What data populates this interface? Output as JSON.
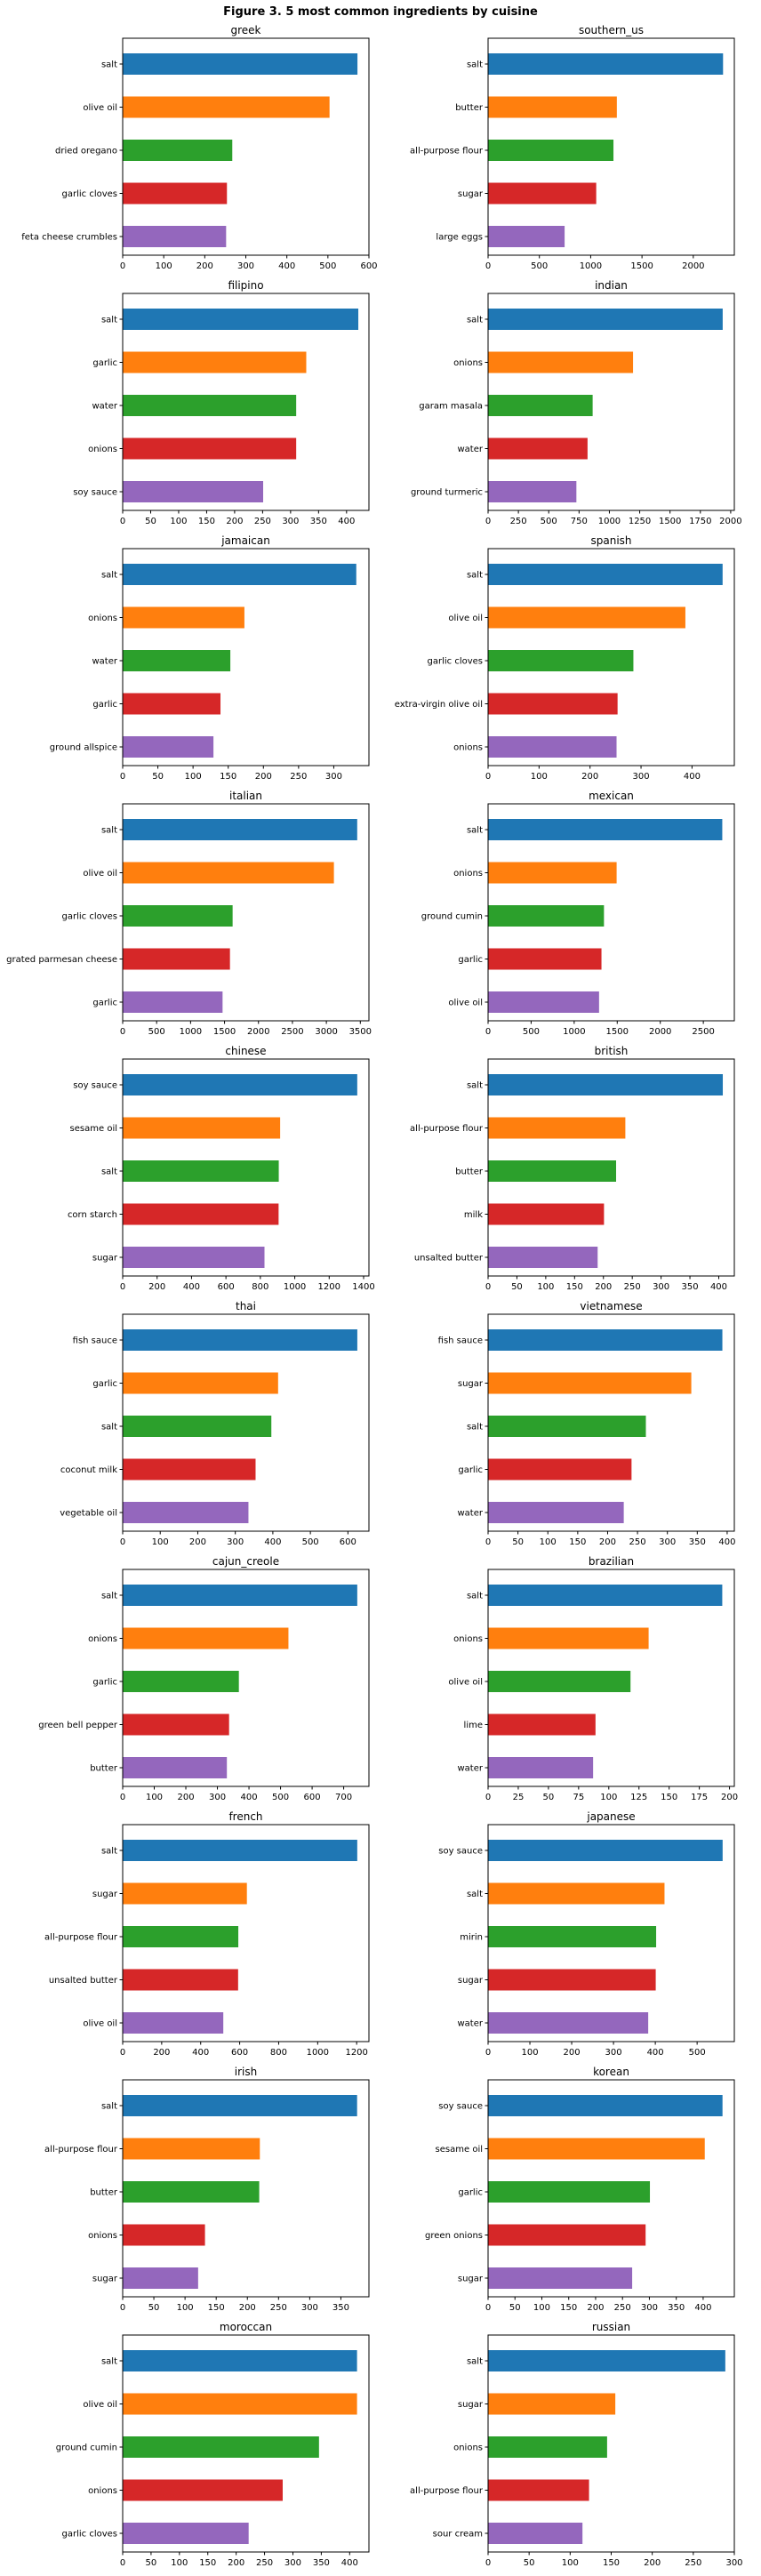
{
  "figure_title": "Figure 3. 5 most common ingredients by cuisine",
  "colors": [
    "#1f77b4",
    "#ff7f0e",
    "#2ca02c",
    "#d62728",
    "#9467bd"
  ],
  "chart_data": [
    {
      "type": "bar",
      "orientation": "horizontal",
      "title": "greek",
      "categories": [
        "salt",
        "olive oil",
        "dried oregano",
        "garlic cloves",
        "feta cheese crumbles"
      ],
      "values": [
        572,
        504,
        267,
        254,
        252
      ],
      "xlim": [
        0,
        600
      ],
      "xticks": [
        0,
        100,
        200,
        300,
        400,
        500,
        600
      ]
    },
    {
      "type": "bar",
      "orientation": "horizontal",
      "title": "southern_us",
      "categories": [
        "salt",
        "butter",
        "all-purpose flour",
        "sugar",
        "large eggs"
      ],
      "values": [
        2290,
        1255,
        1222,
        1054,
        746
      ],
      "xlim": [
        0,
        2400
      ],
      "xticks": [
        0,
        500,
        1000,
        1500,
        2000
      ]
    },
    {
      "type": "bar",
      "orientation": "horizontal",
      "title": "filipino",
      "categories": [
        "salt",
        "garlic",
        "water",
        "onions",
        "soy sauce"
      ],
      "values": [
        421,
        328,
        310,
        310,
        251
      ],
      "xlim": [
        0,
        440
      ],
      "xticks": [
        0,
        50,
        100,
        150,
        200,
        250,
        300,
        350,
        400
      ]
    },
    {
      "type": "bar",
      "orientation": "horizontal",
      "title": "indian",
      "categories": [
        "salt",
        "onions",
        "garam masala",
        "water",
        "ground turmeric"
      ],
      "values": [
        1934,
        1195,
        862,
        820,
        728
      ],
      "xlim": [
        0,
        2030
      ],
      "xticks": [
        0,
        250,
        500,
        750,
        1000,
        1250,
        1500,
        1750,
        2000
      ]
    },
    {
      "type": "bar",
      "orientation": "horizontal",
      "title": "jamaican",
      "categories": [
        "salt",
        "onions",
        "water",
        "garlic",
        "ground allspice"
      ],
      "values": [
        332,
        173,
        153,
        139,
        129
      ],
      "xlim": [
        0,
        350
      ],
      "xticks": [
        0,
        50,
        100,
        150,
        200,
        250,
        300
      ]
    },
    {
      "type": "bar",
      "orientation": "horizontal",
      "title": "spanish",
      "categories": [
        "salt",
        "olive oil",
        "garlic cloves",
        "extra-virgin olive oil",
        "onions"
      ],
      "values": [
        460,
        387,
        285,
        254,
        252
      ],
      "xlim": [
        0,
        483
      ],
      "xticks": [
        0,
        100,
        200,
        300,
        400
      ]
    },
    {
      "type": "bar",
      "orientation": "horizontal",
      "title": "italian",
      "categories": [
        "salt",
        "olive oil",
        "garlic cloves",
        "grated parmesan cheese",
        "garlic"
      ],
      "values": [
        3454,
        3111,
        1619,
        1580,
        1471
      ],
      "xlim": [
        0,
        3627
      ],
      "xticks": [
        0,
        500,
        1000,
        1500,
        2000,
        2500,
        3000,
        3500
      ]
    },
    {
      "type": "bar",
      "orientation": "horizontal",
      "title": "mexican",
      "categories": [
        "salt",
        "onions",
        "ground cumin",
        "garlic",
        "olive oil"
      ],
      "values": [
        2720,
        1493,
        1346,
        1317,
        1289
      ],
      "xlim": [
        0,
        2860
      ],
      "xticks": [
        0,
        500,
        1000,
        1500,
        2000,
        2500
      ]
    },
    {
      "type": "bar",
      "orientation": "horizontal",
      "title": "chinese",
      "categories": [
        "soy sauce",
        "sesame oil",
        "salt",
        "corn starch",
        "sugar"
      ],
      "values": [
        1363,
        915,
        907,
        906,
        824
      ],
      "xlim": [
        0,
        1431
      ],
      "xticks": [
        0,
        200,
        400,
        600,
        800,
        1000,
        1200,
        1400
      ]
    },
    {
      "type": "bar",
      "orientation": "horizontal",
      "title": "british",
      "categories": [
        "salt",
        "all-purpose flour",
        "butter",
        "milk",
        "unsalted butter"
      ],
      "values": [
        407,
        238,
        222,
        201,
        190
      ],
      "xlim": [
        0,
        427
      ],
      "xticks": [
        0,
        50,
        100,
        150,
        200,
        250,
        300,
        350,
        400
      ]
    },
    {
      "type": "bar",
      "orientation": "horizontal",
      "title": "thai",
      "categories": [
        "fish sauce",
        "garlic",
        "salt",
        "coconut milk",
        "vegetable oil"
      ],
      "values": [
        625,
        414,
        396,
        354,
        335
      ],
      "xlim": [
        0,
        656
      ],
      "xticks": [
        0,
        100,
        200,
        300,
        400,
        500,
        600
      ]
    },
    {
      "type": "bar",
      "orientation": "horizontal",
      "title": "vietnamese",
      "categories": [
        "fish sauce",
        "sugar",
        "salt",
        "garlic",
        "water"
      ],
      "values": [
        392,
        340,
        264,
        240,
        227
      ],
      "xlim": [
        0,
        412
      ],
      "xticks": [
        0,
        50,
        100,
        150,
        200,
        250,
        300,
        350,
        400
      ]
    },
    {
      "type": "bar",
      "orientation": "horizontal",
      "title": "cajun_creole",
      "categories": [
        "salt",
        "onions",
        "garlic",
        "green bell pepper",
        "butter"
      ],
      "values": [
        743,
        525,
        368,
        337,
        330
      ],
      "xlim": [
        0,
        780
      ],
      "xticks": [
        0,
        100,
        200,
        300,
        400,
        500,
        600,
        700
      ]
    },
    {
      "type": "bar",
      "orientation": "horizontal",
      "title": "brazilian",
      "categories": [
        "salt",
        "onions",
        "olive oil",
        "lime",
        "water"
      ],
      "values": [
        194,
        133,
        118,
        89,
        87
      ],
      "xlim": [
        0,
        204
      ],
      "xticks": [
        0,
        25,
        50,
        75,
        100,
        125,
        150,
        175,
        200
      ]
    },
    {
      "type": "bar",
      "orientation": "horizontal",
      "title": "french",
      "categories": [
        "salt",
        "sugar",
        "all-purpose flour",
        "unsalted butter",
        "olive oil"
      ],
      "values": [
        1203,
        637,
        593,
        592,
        516
      ],
      "xlim": [
        0,
        1263
      ],
      "xticks": [
        0,
        200,
        400,
        600,
        800,
        1000,
        1200
      ]
    },
    {
      "type": "bar",
      "orientation": "horizontal",
      "title": "japanese",
      "categories": [
        "soy sauce",
        "salt",
        "mirin",
        "sugar",
        "water"
      ],
      "values": [
        561,
        422,
        402,
        401,
        383
      ],
      "xlim": [
        0,
        589
      ],
      "xticks": [
        0,
        100,
        200,
        300,
        400,
        500
      ]
    },
    {
      "type": "bar",
      "orientation": "horizontal",
      "title": "irish",
      "categories": [
        "salt",
        "all-purpose flour",
        "butter",
        "onions",
        "sugar"
      ],
      "values": [
        376,
        220,
        219,
        132,
        121
      ],
      "xlim": [
        0,
        395
      ],
      "xticks": [
        0,
        50,
        100,
        150,
        200,
        250,
        300,
        350
      ]
    },
    {
      "type": "bar",
      "orientation": "horizontal",
      "title": "korean",
      "categories": [
        "soy sauce",
        "sesame oil",
        "garlic",
        "green onions",
        "sugar"
      ],
      "values": [
        436,
        403,
        301,
        293,
        268
      ],
      "xlim": [
        0,
        458
      ],
      "xticks": [
        0,
        50,
        100,
        150,
        200,
        250,
        300,
        350,
        400
      ]
    },
    {
      "type": "bar",
      "orientation": "horizontal",
      "title": "moroccan",
      "categories": [
        "salt",
        "olive oil",
        "ground cumin",
        "onions",
        "garlic cloves"
      ],
      "values": [
        413,
        413,
        346,
        282,
        222
      ],
      "xlim": [
        0,
        434
      ],
      "xticks": [
        0,
        50,
        100,
        150,
        200,
        250,
        300,
        350,
        400
      ]
    },
    {
      "type": "bar",
      "orientation": "horizontal",
      "title": "russian",
      "categories": [
        "salt",
        "sugar",
        "onions",
        "all-purpose flour",
        "sour cream"
      ],
      "values": [
        289,
        155,
        145,
        123,
        115
      ],
      "xlim": [
        0,
        300
      ],
      "xticks": [
        0,
        50,
        100,
        150,
        200,
        250,
        300
      ]
    }
  ]
}
